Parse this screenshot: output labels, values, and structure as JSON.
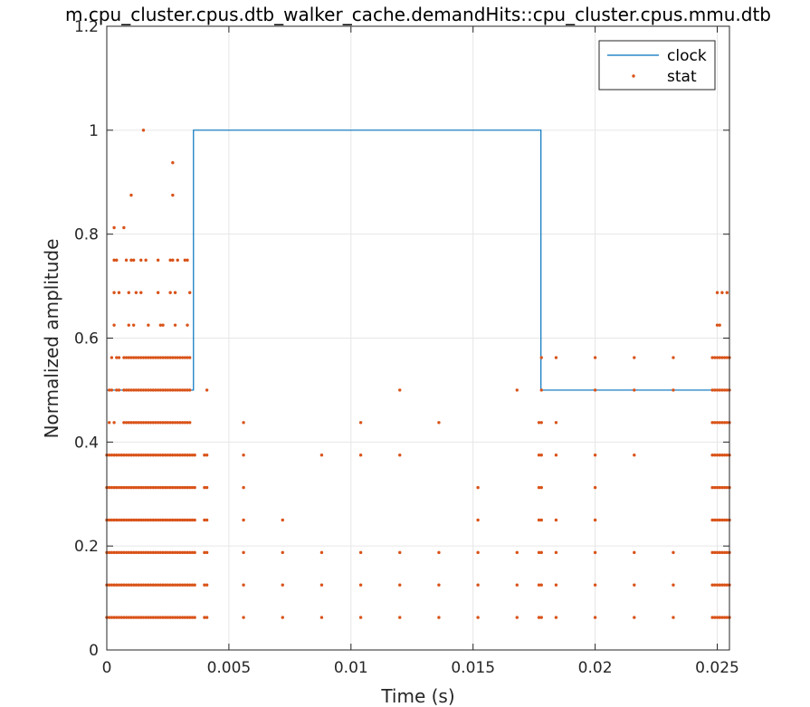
{
  "chart_data": {
    "type": "line",
    "title": "m.cpu_cluster.cpus.dtb_walker_cache.demandHits::cpu_cluster.cpus.mmu.dtb",
    "xlabel": "Time (s)",
    "ylabel": "Normalized amplitude",
    "xlim": [
      0,
      0.0255
    ],
    "ylim": [
      0,
      1.2
    ],
    "xticks": [
      0,
      0.005,
      0.01,
      0.015,
      0.02,
      0.025
    ],
    "xtick_labels": [
      "0",
      "0.005",
      "0.01",
      "0.015",
      "0.02",
      "0.025"
    ],
    "yticks": [
      0,
      0.2,
      0.4,
      0.6,
      0.8,
      1,
      1.2
    ],
    "ytick_labels": [
      "0",
      "0.2",
      "0.4",
      "0.6",
      "0.8",
      "1",
      "1.2"
    ],
    "grid": true,
    "legend_position": "top-right",
    "colors": {
      "clock": "#0072BD",
      "stat": "#D95319"
    },
    "series": [
      {
        "name": "clock",
        "style": "step",
        "x": [
          0,
          0.00355,
          0.00355,
          0.01778,
          0.01778,
          0.0255
        ],
        "y": [
          0.5,
          0.5,
          1.0,
          1.0,
          0.5,
          0.5
        ]
      },
      {
        "name": "stat",
        "style": "scatter",
        "dense_blocks": [
          {
            "x0": 0.0,
            "x1": 0.00355,
            "dx": 0.0001,
            "y": [
              0.0625,
              0.125,
              0.1875,
              0.25,
              0.3125,
              0.375
            ]
          },
          {
            "x0": 0.0007,
            "x1": 0.0034,
            "dx": 0.0001,
            "y": [
              0.4375
            ]
          },
          {
            "x0": 0.0007,
            "x1": 0.0034,
            "dx": 0.0001,
            "y": [
              0.5
            ]
          },
          {
            "x0": 0.0007,
            "x1": 0.0034,
            "dx": 0.0001,
            "y": [
              0.5625
            ]
          },
          {
            "x0": 0.0248,
            "x1": 0.0255,
            "dx": 0.0001,
            "y": [
              0.0625,
              0.125,
              0.1875,
              0.25,
              0.3125,
              0.375,
              0.4375,
              0.5,
              0.5625
            ]
          }
        ],
        "points": [
          [
            0.0001,
            0.5
          ],
          [
            0.0002,
            0.5
          ],
          [
            0.0004,
            0.5
          ],
          [
            0.0005,
            0.5
          ],
          [
            0.0001,
            0.4375
          ],
          [
            0.0003,
            0.4375
          ],
          [
            0.0002,
            0.5625
          ],
          [
            0.0004,
            0.5625
          ],
          [
            0.0005,
            0.5625
          ],
          [
            0.0003,
            0.625
          ],
          [
            0.0009,
            0.625
          ],
          [
            0.0011,
            0.625
          ],
          [
            0.0017,
            0.625
          ],
          [
            0.0022,
            0.625
          ],
          [
            0.0023,
            0.625
          ],
          [
            0.0028,
            0.625
          ],
          [
            0.0033,
            0.625
          ],
          [
            0.0003,
            0.6875
          ],
          [
            0.0005,
            0.6875
          ],
          [
            0.0009,
            0.6875
          ],
          [
            0.0012,
            0.6875
          ],
          [
            0.0014,
            0.6875
          ],
          [
            0.0021,
            0.6875
          ],
          [
            0.0026,
            0.6875
          ],
          [
            0.0028,
            0.6875
          ],
          [
            0.0034,
            0.6875
          ],
          [
            0.0003,
            0.75
          ],
          [
            0.0004,
            0.75
          ],
          [
            0.0008,
            0.75
          ],
          [
            0.001,
            0.75
          ],
          [
            0.0011,
            0.75
          ],
          [
            0.0014,
            0.75
          ],
          [
            0.0016,
            0.75
          ],
          [
            0.0021,
            0.75
          ],
          [
            0.0026,
            0.75
          ],
          [
            0.0027,
            0.75
          ],
          [
            0.0029,
            0.75
          ],
          [
            0.0032,
            0.75
          ],
          [
            0.0033,
            0.75
          ],
          [
            0.0003,
            0.8125
          ],
          [
            0.0007,
            0.8125
          ],
          [
            0.001,
            0.875
          ],
          [
            0.0027,
            0.875
          ],
          [
            0.0027,
            0.9375
          ],
          [
            0.0015,
            1.0
          ],
          [
            0.0041,
            0.5
          ],
          [
            0.0041,
            0.375
          ],
          [
            0.0041,
            0.3125
          ],
          [
            0.0041,
            0.25
          ],
          [
            0.0041,
            0.1875
          ],
          [
            0.0041,
            0.125
          ],
          [
            0.0041,
            0.0625
          ],
          [
            0.004,
            0.375
          ],
          [
            0.004,
            0.3125
          ],
          [
            0.004,
            0.25
          ],
          [
            0.004,
            0.1875
          ],
          [
            0.004,
            0.125
          ],
          [
            0.004,
            0.0625
          ],
          [
            0.0056,
            0.4375
          ],
          [
            0.0056,
            0.375
          ],
          [
            0.0056,
            0.3125
          ],
          [
            0.0056,
            0.25
          ],
          [
            0.0056,
            0.1875
          ],
          [
            0.0056,
            0.125
          ],
          [
            0.0056,
            0.0625
          ],
          [
            0.0072,
            0.25
          ],
          [
            0.0072,
            0.1875
          ],
          [
            0.0072,
            0.125
          ],
          [
            0.0072,
            0.0625
          ],
          [
            0.0088,
            0.375
          ],
          [
            0.0088,
            0.1875
          ],
          [
            0.0088,
            0.125
          ],
          [
            0.0088,
            0.0625
          ],
          [
            0.0104,
            0.4375
          ],
          [
            0.0104,
            0.375
          ],
          [
            0.0104,
            0.1875
          ],
          [
            0.0104,
            0.125
          ],
          [
            0.0104,
            0.0625
          ],
          [
            0.012,
            0.5
          ],
          [
            0.012,
            0.375
          ],
          [
            0.012,
            0.1875
          ],
          [
            0.012,
            0.125
          ],
          [
            0.012,
            0.0625
          ],
          [
            0.0136,
            0.4375
          ],
          [
            0.0136,
            0.1875
          ],
          [
            0.0136,
            0.125
          ],
          [
            0.0136,
            0.0625
          ],
          [
            0.0152,
            0.3125
          ],
          [
            0.0152,
            0.25
          ],
          [
            0.0152,
            0.1875
          ],
          [
            0.0152,
            0.125
          ],
          [
            0.0152,
            0.0625
          ],
          [
            0.0168,
            0.5
          ],
          [
            0.0168,
            0.1875
          ],
          [
            0.0168,
            0.125
          ],
          [
            0.0168,
            0.0625
          ],
          [
            0.0177,
            0.4375
          ],
          [
            0.0177,
            0.375
          ],
          [
            0.0177,
            0.3125
          ],
          [
            0.0177,
            0.25
          ],
          [
            0.0177,
            0.1875
          ],
          [
            0.0177,
            0.125
          ],
          [
            0.0177,
            0.0625
          ],
          [
            0.0178,
            0.5625
          ],
          [
            0.0178,
            0.5
          ],
          [
            0.0178,
            0.4375
          ],
          [
            0.0178,
            0.375
          ],
          [
            0.0178,
            0.3125
          ],
          [
            0.0178,
            0.25
          ],
          [
            0.0178,
            0.1875
          ],
          [
            0.0178,
            0.125
          ],
          [
            0.0178,
            0.0625
          ],
          [
            0.0184,
            0.5625
          ],
          [
            0.0184,
            0.4375
          ],
          [
            0.0184,
            0.375
          ],
          [
            0.0184,
            0.25
          ],
          [
            0.0184,
            0.1875
          ],
          [
            0.0184,
            0.125
          ],
          [
            0.0184,
            0.0625
          ],
          [
            0.02,
            0.5625
          ],
          [
            0.02,
            0.5
          ],
          [
            0.02,
            0.375
          ],
          [
            0.02,
            0.3125
          ],
          [
            0.02,
            0.25
          ],
          [
            0.02,
            0.1875
          ],
          [
            0.02,
            0.125
          ],
          [
            0.02,
            0.0625
          ],
          [
            0.0216,
            0.5625
          ],
          [
            0.0216,
            0.5
          ],
          [
            0.0216,
            0.375
          ],
          [
            0.0216,
            0.1875
          ],
          [
            0.0216,
            0.125
          ],
          [
            0.0216,
            0.0625
          ],
          [
            0.0232,
            0.5625
          ],
          [
            0.0232,
            0.5
          ],
          [
            0.0232,
            0.1875
          ],
          [
            0.0232,
            0.125
          ],
          [
            0.0232,
            0.0625
          ],
          [
            0.025,
            0.625
          ],
          [
            0.0251,
            0.625
          ],
          [
            0.025,
            0.6875
          ],
          [
            0.0252,
            0.6875
          ],
          [
            0.0254,
            0.6875
          ]
        ]
      }
    ]
  }
}
